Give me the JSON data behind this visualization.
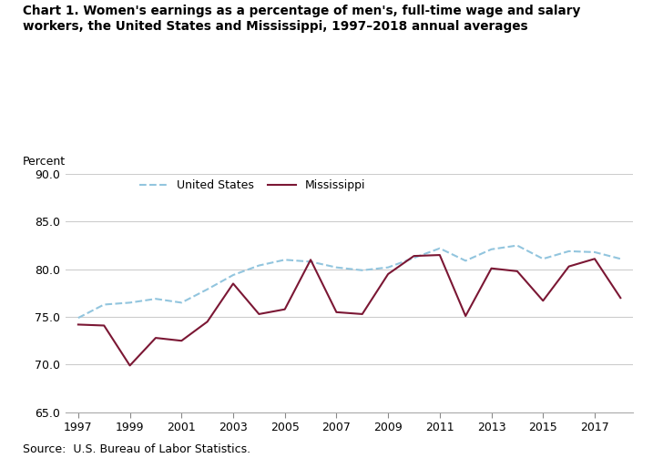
{
  "years": [
    1997,
    1998,
    1999,
    2000,
    2001,
    2002,
    2003,
    2004,
    2005,
    2006,
    2007,
    2008,
    2009,
    2010,
    2011,
    2012,
    2013,
    2014,
    2015,
    2016,
    2017,
    2018
  ],
  "us_values": [
    74.9,
    76.3,
    76.5,
    76.9,
    76.5,
    77.9,
    79.4,
    80.4,
    81.0,
    80.8,
    80.2,
    79.9,
    80.2,
    81.2,
    82.2,
    80.9,
    82.1,
    82.5,
    81.1,
    81.9,
    81.8,
    81.1
  ],
  "ms_values": [
    74.2,
    74.1,
    69.9,
    72.8,
    72.5,
    74.5,
    78.5,
    75.3,
    75.8,
    81.0,
    75.5,
    75.3,
    79.5,
    81.4,
    81.5,
    75.1,
    80.1,
    79.8,
    76.7,
    80.3,
    81.1,
    77.0
  ],
  "us_color": "#92c5de",
  "ms_color": "#7b1734",
  "us_label": "United States",
  "ms_label": "Mississippi",
  "title": "Chart 1. Women's earnings as a percentage of men's, full-time wage and salary\nworkers, the United States and Mississippi, 1997–2018 annual averages",
  "ylabel": "Percent",
  "source": "Source:  U.S. Bureau of Labor Statistics.",
  "ylim": [
    65.0,
    90.0
  ],
  "yticks": [
    65.0,
    70.0,
    75.0,
    80.0,
    85.0,
    90.0
  ],
  "ytick_labels": [
    "65.0",
    "70.0",
    "75.0",
    "80.0",
    "85.0",
    "90.0"
  ],
  "xticks": [
    1997,
    1999,
    2001,
    2003,
    2005,
    2007,
    2009,
    2011,
    2013,
    2015,
    2017
  ],
  "background_color": "#ffffff",
  "grid_color": "#cccccc"
}
